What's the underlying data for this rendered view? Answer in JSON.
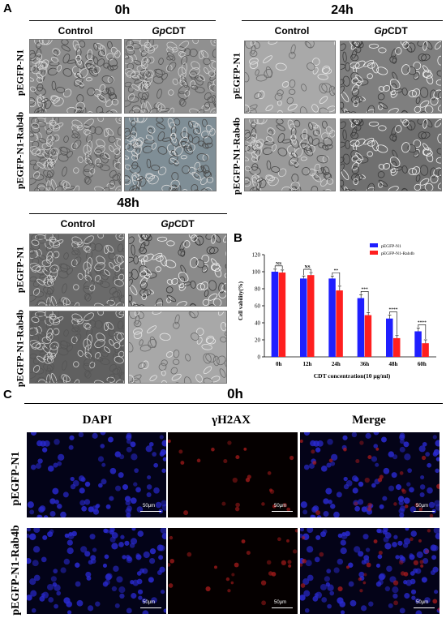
{
  "panels": {
    "a": {
      "letter": "A",
      "groups": [
        {
          "time": "0h",
          "control": "Control",
          "treated": "CDT",
          "treated_prefix": "Gp",
          "row1": "pEGFP-N1",
          "row2": "pEGFP-N1-Rab4b"
        },
        {
          "time": "24h",
          "control": "Control",
          "treated": "CDT",
          "treated_prefix": "Gp",
          "row1": "pEGFP-N1",
          "row2": "pEGFP-N1-Rab4b"
        },
        {
          "time": "48h",
          "control": "Control",
          "treated": "CDT",
          "treated_prefix": "Gp",
          "row1": "pEGFP-N1",
          "row2": "pEGFP-N1-Rab4b"
        }
      ]
    },
    "b": {
      "letter": "B"
    },
    "c": {
      "letter": "C",
      "time": "0h",
      "columns": [
        "DAPI",
        "γH2AX",
        "Merge"
      ],
      "row1": "pEGFP-N1",
      "row2": "pEGFP-N1-Rab4b",
      "scale": "50μm"
    }
  },
  "colors": {
    "series1": "#1f1fff",
    "series2": "#ff1f1f",
    "dapi": "#1a1a9a",
    "h2ax": "#a01818"
  },
  "chart_data": {
    "type": "bar",
    "categories": [
      "0h",
      "12h",
      "24h",
      "36h",
      "48h",
      "60h"
    ],
    "series": [
      {
        "name": "pEGFP-N1",
        "values": [
          100,
          92,
          92,
          69,
          45,
          30
        ],
        "errors": [
          3,
          3,
          3,
          4,
          4,
          4
        ]
      },
      {
        "name": "pEGFP-N1-Rab4b",
        "values": [
          99,
          96,
          78,
          49,
          22,
          16
        ],
        "errors": [
          3,
          3,
          5,
          3,
          3,
          4
        ]
      }
    ],
    "significance": [
      "NS",
      "NS",
      "**",
      "***",
      "****",
      "****"
    ],
    "xlabel": "CDT concentration(10 μg/ml)",
    "ylabel": "Cell vability(%)",
    "ylim": [
      0,
      120
    ],
    "yticks": [
      "0",
      "20",
      "40",
      "60",
      "80",
      "100",
      "120"
    ],
    "legend_position": "top-right"
  }
}
